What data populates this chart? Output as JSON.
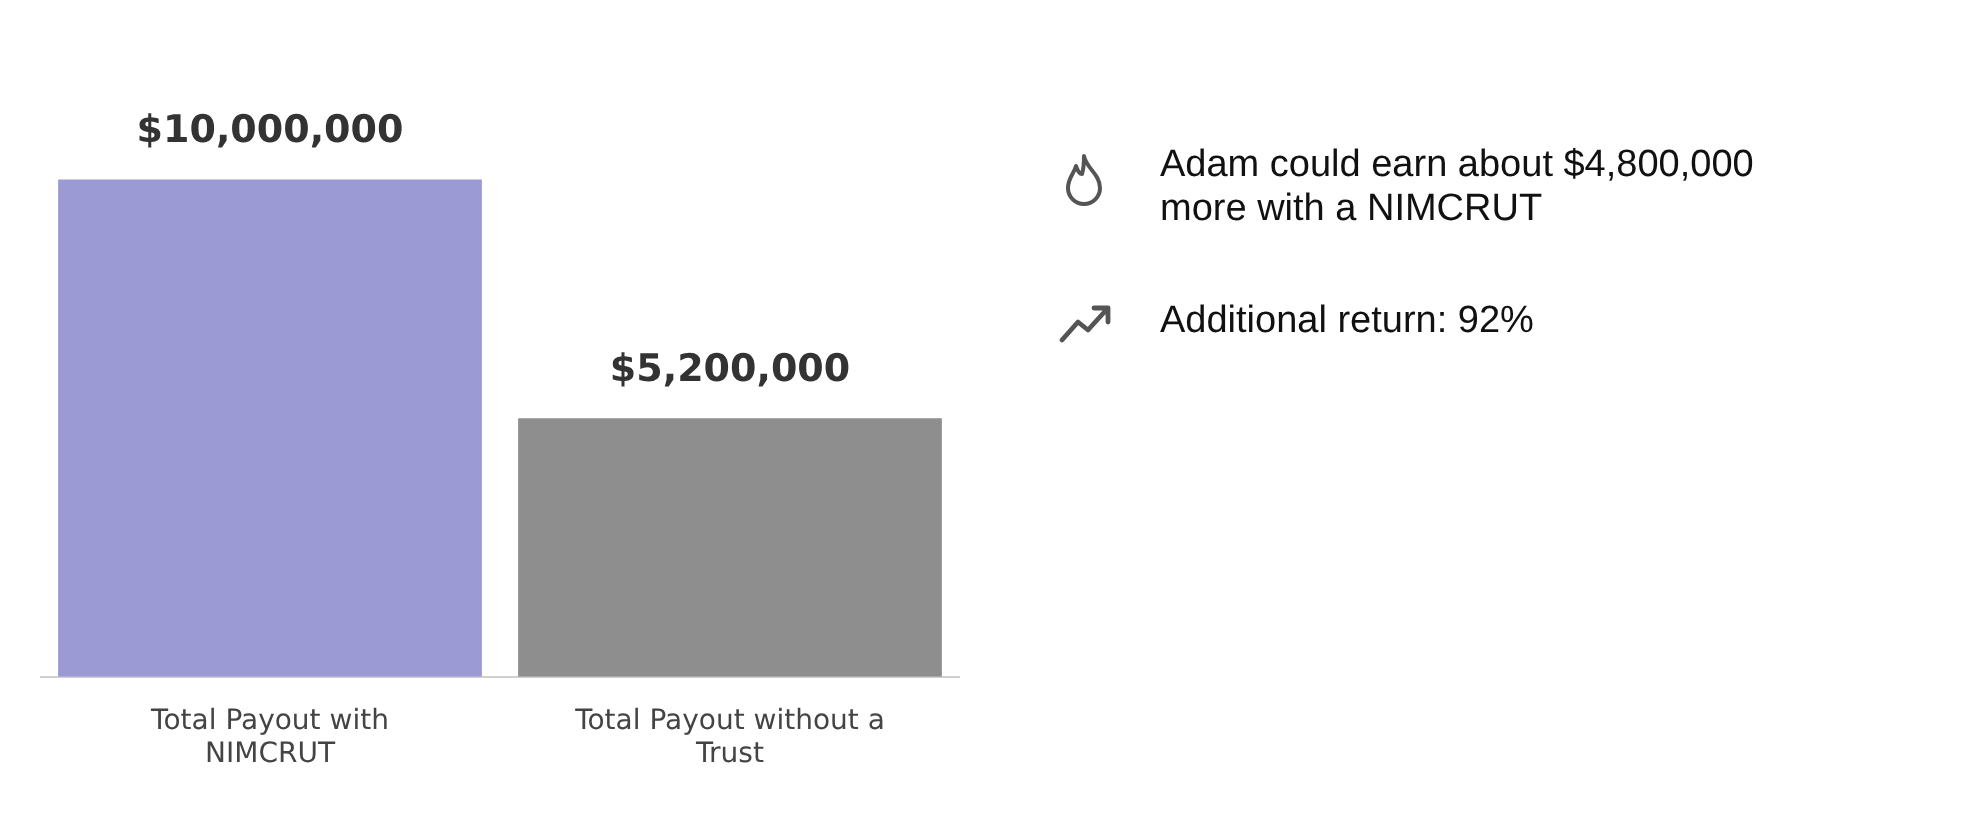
{
  "chart_data": {
    "type": "bar",
    "categories": [
      "Total Payout with NIMCRUT",
      "Total Payout without a Trust"
    ],
    "values": [
      10000000,
      5200000
    ],
    "colors": [
      "#9c9ad4",
      "#8e8e8e"
    ],
    "value_labels": [
      "$10,000,000",
      "$5,200,000"
    ],
    "grid": false,
    "legend": false,
    "annotations": [
      "Adam could earn about $4,800,000 more with a NIMCRUT",
      "Additional return: 92%"
    ]
  }
}
